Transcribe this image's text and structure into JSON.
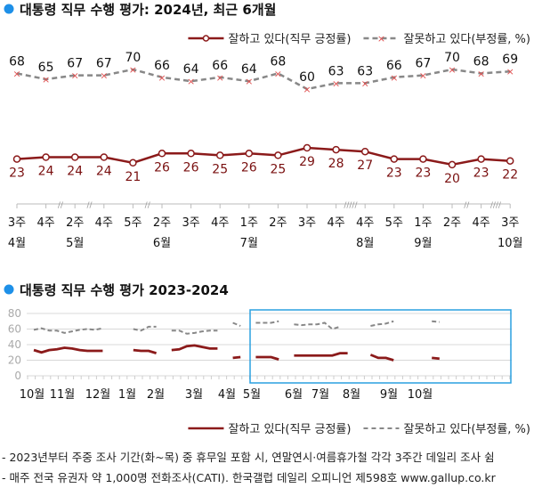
{
  "chart_data": [
    {
      "type": "line",
      "title": "대통령 직무 수행 평가: 2024년, 최근 6개월",
      "weeks": [
        "3주",
        "4주",
        "2주",
        "4주",
        "5주",
        "2주",
        "3주",
        "4주",
        "1주",
        "2주",
        "3주",
        "4주",
        "4주",
        "5주",
        "1주",
        "2주",
        "4주",
        "3주"
      ],
      "months": [
        {
          "label": "4월",
          "at": 0
        },
        {
          "label": "5월",
          "at": 2
        },
        {
          "label": "6월",
          "at": 5
        },
        {
          "label": "7월",
          "at": 8
        },
        {
          "label": "8월",
          "at": 12
        },
        {
          "label": "9월",
          "at": 14
        },
        {
          "label": "10월",
          "at": 17
        }
      ],
      "breaks": [
        {
          "after": 1,
          "mark": "//"
        },
        {
          "after": 2,
          "mark": "//"
        },
        {
          "after": 4,
          "mark": "//"
        },
        {
          "after": 11,
          "mark": "/////"
        },
        {
          "after": 15,
          "mark": "//"
        },
        {
          "after": 16,
          "mark": "////"
        }
      ],
      "series": [
        {
          "name": "잘하고 있다(직무 긍정률)",
          "color": "#8b1a1a",
          "values": [
            23,
            24,
            24,
            24,
            21,
            26,
            26,
            25,
            26,
            25,
            29,
            28,
            27,
            23,
            23,
            20,
            23,
            22
          ]
        },
        {
          "name": "잘못하고 있다(부정률, %)",
          "color": "#888888",
          "marker_color": "#e05050",
          "values": [
            68,
            65,
            67,
            67,
            70,
            66,
            64,
            66,
            64,
            68,
            60,
            63,
            63,
            66,
            67,
            70,
            68,
            69
          ]
        }
      ]
    },
    {
      "type": "line",
      "title": "대통령 직무 수행 평가 2023-2024",
      "ylim": [
        0,
        80
      ],
      "yticks": [
        0,
        20,
        40,
        60,
        80
      ],
      "grid": true,
      "months": [
        "10월",
        "11월",
        "12월",
        "1월",
        "2월",
        "3월",
        "4월",
        "5월",
        "6월",
        "7월",
        "8월",
        "9월",
        "10월"
      ],
      "highlight_color": "#2aa0e0",
      "legend": "bottom-right",
      "series": [
        {
          "name": "잘하고 있다(직무 긍정률)",
          "color": "#8b1a1a",
          "segments": [
            {
              "start": 0,
              "values": [
                33,
                30,
                33,
                34,
                36,
                35,
                33,
                32,
                32,
                32
              ]
            },
            {
              "start": 13,
              "values": [
                33,
                32,
                32,
                29
              ]
            },
            {
              "start": 18,
              "values": [
                33,
                34,
                38,
                39,
                37,
                35,
                35
              ]
            },
            {
              "start": 26,
              "values": [
                23,
                24
              ]
            },
            {
              "start": 29,
              "values": [
                24,
                24,
                24,
                21
              ]
            },
            {
              "start": 34,
              "values": [
                26,
                26,
                26,
                26,
                26,
                26,
                29,
                29
              ]
            },
            {
              "start": 44,
              "values": [
                27,
                23,
                23,
                20
              ]
            },
            {
              "start": 52,
              "values": [
                23,
                22
              ]
            }
          ]
        },
        {
          "name": "잘못하고 있다(부정률, %)",
          "color": "#888888",
          "segments": [
            {
              "start": 0,
              "values": [
                59,
                61,
                58,
                58,
                55,
                57,
                59,
                60,
                59,
                61
              ]
            },
            {
              "start": 13,
              "values": [
                60,
                58,
                63,
                63
              ]
            },
            {
              "start": 18,
              "values": [
                58,
                58,
                54,
                55,
                57,
                58,
                58
              ]
            },
            {
              "start": 26,
              "values": [
                68,
                64
              ]
            },
            {
              "start": 29,
              "values": [
                68,
                68,
                68,
                70
              ]
            },
            {
              "start": 34,
              "values": [
                66,
                65,
                66,
                66,
                68,
                60,
                63
              ]
            },
            {
              "start": 44,
              "values": [
                64,
                66,
                67,
                70
              ]
            },
            {
              "start": 52,
              "values": [
                70,
                69
              ]
            }
          ]
        }
      ]
    }
  ],
  "notes": [
    "- 2023년부터 주중 조사 기간(화~목) 중 휴무일 포함 시, 연말연시·여름휴가철 각각 3주간 데일리 조사 쉼",
    "- 매주 전국 유권자 약 1,000명 전화조사(CATI). 한국갤럽 데일리 오피니언 제598호 www.gallup.co.kr"
  ]
}
